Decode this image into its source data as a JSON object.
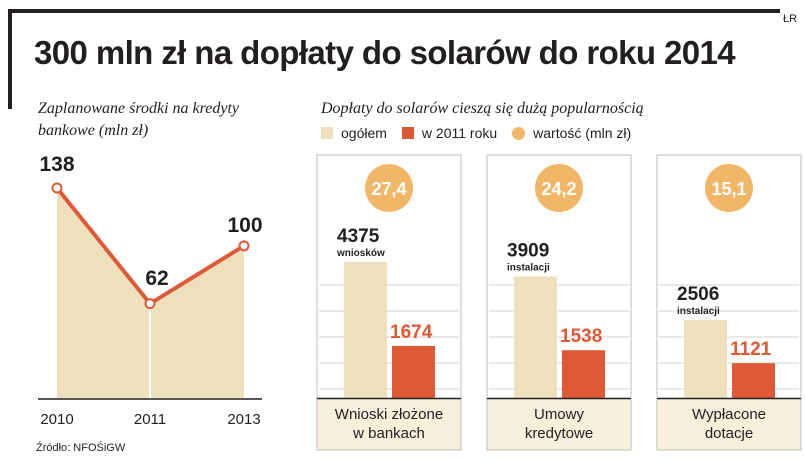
{
  "header": {
    "corner_tag": "ŁR",
    "title": "300 mln zł na dopłaty do solarów do roku 2014",
    "source": "Źródło: NFOŚiGW"
  },
  "chart_data": [
    {
      "type": "area",
      "title": "Zaplanowane środki na kredyty bankowe (mln zł)",
      "x": [
        "2010",
        "2011",
        "2013"
      ],
      "values": [
        138,
        62,
        100
      ],
      "ylim": [
        0,
        150
      ],
      "grid": false,
      "legend": "none"
    },
    {
      "type": "bar",
      "title": "Dopłaty do solarów cieszą się dużą popularnością",
      "categories": [
        "Wnioski złożone\nw bankach",
        "Umowy\nkredytowe",
        "Wypłacone\ndotacje"
      ],
      "series": [
        {
          "name": "ogółem",
          "values": [
            4375,
            3909,
            2506
          ],
          "units": [
            "wniosków",
            "instalacji",
            "instalacji"
          ]
        },
        {
          "name": "w 2011 roku",
          "values": [
            1674,
            1538,
            1121
          ]
        },
        {
          "name": "wartość (mln zł)",
          "values": [
            27.4,
            24.2,
            15.1
          ],
          "labels": [
            "27,4",
            "24,2",
            "15,1"
          ]
        }
      ],
      "ylim": [
        0,
        5000
      ],
      "grid": true,
      "legend": "top-left"
    }
  ],
  "colors": {
    "beige": "#efe0bd",
    "beige_panel": "#f7efdc",
    "orange_red": "#de5a37",
    "circle_orange": "#f1b668",
    "dark": "#231f20",
    "grid": "#d3d3d3",
    "panel_border": "#bdbdbd"
  }
}
